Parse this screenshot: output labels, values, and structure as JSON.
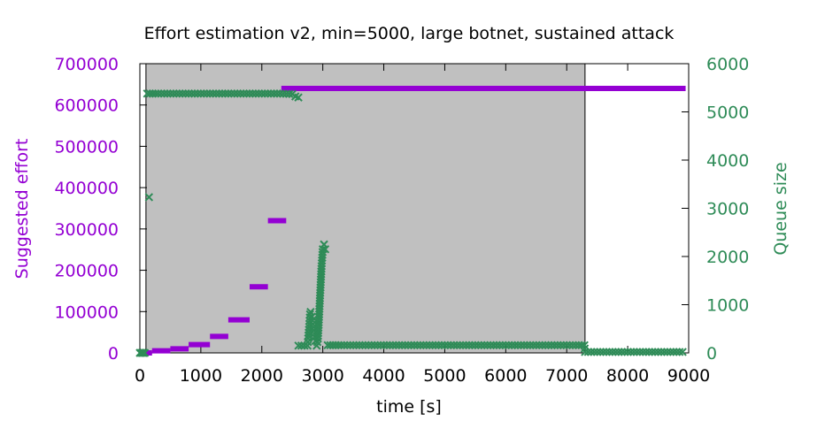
{
  "chart_data": {
    "type": "scatter",
    "title": "Effort estimation v2, min=5000, large botnet, sustained attack",
    "xlabel": "time [s]",
    "ylabel": "Suggested effort",
    "y2label": "Queue size",
    "xlim": [
      0,
      9000
    ],
    "ylim": [
      0,
      700000
    ],
    "y2lim": [
      0,
      6000
    ],
    "x_ticks": [
      0,
      1000,
      2000,
      3000,
      4000,
      5000,
      6000,
      7000,
      8000,
      9000
    ],
    "y_ticks": [
      0,
      100000,
      200000,
      300000,
      400000,
      500000,
      600000,
      700000
    ],
    "y2_ticks": [
      0,
      1000,
      2000,
      3000,
      4000,
      5000,
      6000
    ],
    "attack_window": [
      100,
      7300
    ],
    "grid": false,
    "series": [
      {
        "axis": "left",
        "color": "#9400d3",
        "segments": [
          {
            "x": [
              0,
              200
            ],
            "y": 0
          },
          {
            "x": [
              200,
              500
            ],
            "y": 5000
          },
          {
            "x": [
              500,
              800
            ],
            "y": 10000
          },
          {
            "x": [
              800,
              1150
            ],
            "y": 20000
          },
          {
            "x": [
              1150,
              1450
            ],
            "y": 40000
          },
          {
            "x": [
              1450,
              1800
            ],
            "y": 80000
          },
          {
            "x": [
              1800,
              2100
            ],
            "y": 160000
          },
          {
            "x": [
              2100,
              2400
            ],
            "y": 320000
          },
          {
            "x": [
              2320,
              8950
            ],
            "y": 640000
          }
        ]
      },
      {
        "axis": "right",
        "color": "#2e8b57",
        "points": [
          [
            0,
            0
          ],
          [
            20,
            0
          ],
          [
            40,
            0
          ],
          [
            60,
            0
          ],
          [
            80,
            0
          ],
          [
            150,
            3230
          ],
          [
            120,
            5380
          ],
          [
            300,
            5380
          ],
          [
            500,
            5380
          ],
          [
            700,
            5380
          ],
          [
            900,
            5380
          ],
          [
            1100,
            5380
          ],
          [
            1300,
            5380
          ],
          [
            1500,
            5380
          ],
          [
            1700,
            5380
          ],
          [
            1900,
            5380
          ],
          [
            2100,
            5380
          ],
          [
            2300,
            5380
          ],
          [
            2500,
            5370
          ],
          [
            2550,
            5320
          ],
          [
            2600,
            5300
          ],
          [
            2600,
            150
          ],
          [
            2650,
            150
          ],
          [
            2700,
            150
          ],
          [
            2750,
            150
          ],
          [
            2760,
            300
          ],
          [
            2780,
            600
          ],
          [
            2790,
            800
          ],
          [
            2800,
            850
          ],
          [
            2820,
            750
          ],
          [
            2840,
            600
          ],
          [
            2860,
            400
          ],
          [
            2880,
            250
          ],
          [
            2900,
            150
          ],
          [
            2920,
            300
          ],
          [
            2940,
            800
          ],
          [
            2960,
            1300
          ],
          [
            2980,
            1800
          ],
          [
            3000,
            2150
          ],
          [
            3020,
            2250
          ],
          [
            3040,
            2150
          ],
          [
            3080,
            160
          ],
          [
            3300,
            160
          ],
          [
            3600,
            160
          ],
          [
            3900,
            160
          ],
          [
            4200,
            160
          ],
          [
            4500,
            160
          ],
          [
            4800,
            160
          ],
          [
            5100,
            160
          ],
          [
            5400,
            160
          ],
          [
            5700,
            160
          ],
          [
            6000,
            160
          ],
          [
            6300,
            160
          ],
          [
            6600,
            160
          ],
          [
            6900,
            160
          ],
          [
            7200,
            160
          ],
          [
            7290,
            160
          ],
          [
            7300,
            20
          ],
          [
            7500,
            20
          ],
          [
            7700,
            20
          ],
          [
            7900,
            20
          ],
          [
            8100,
            20
          ],
          [
            8300,
            20
          ],
          [
            8500,
            20
          ],
          [
            8700,
            20
          ],
          [
            8900,
            20
          ]
        ]
      }
    ]
  },
  "colors": {
    "background": "#ffffff",
    "attack_shade": "#c0c0c0",
    "left_axis": "#9400d3",
    "right_axis": "#2e8b57"
  }
}
